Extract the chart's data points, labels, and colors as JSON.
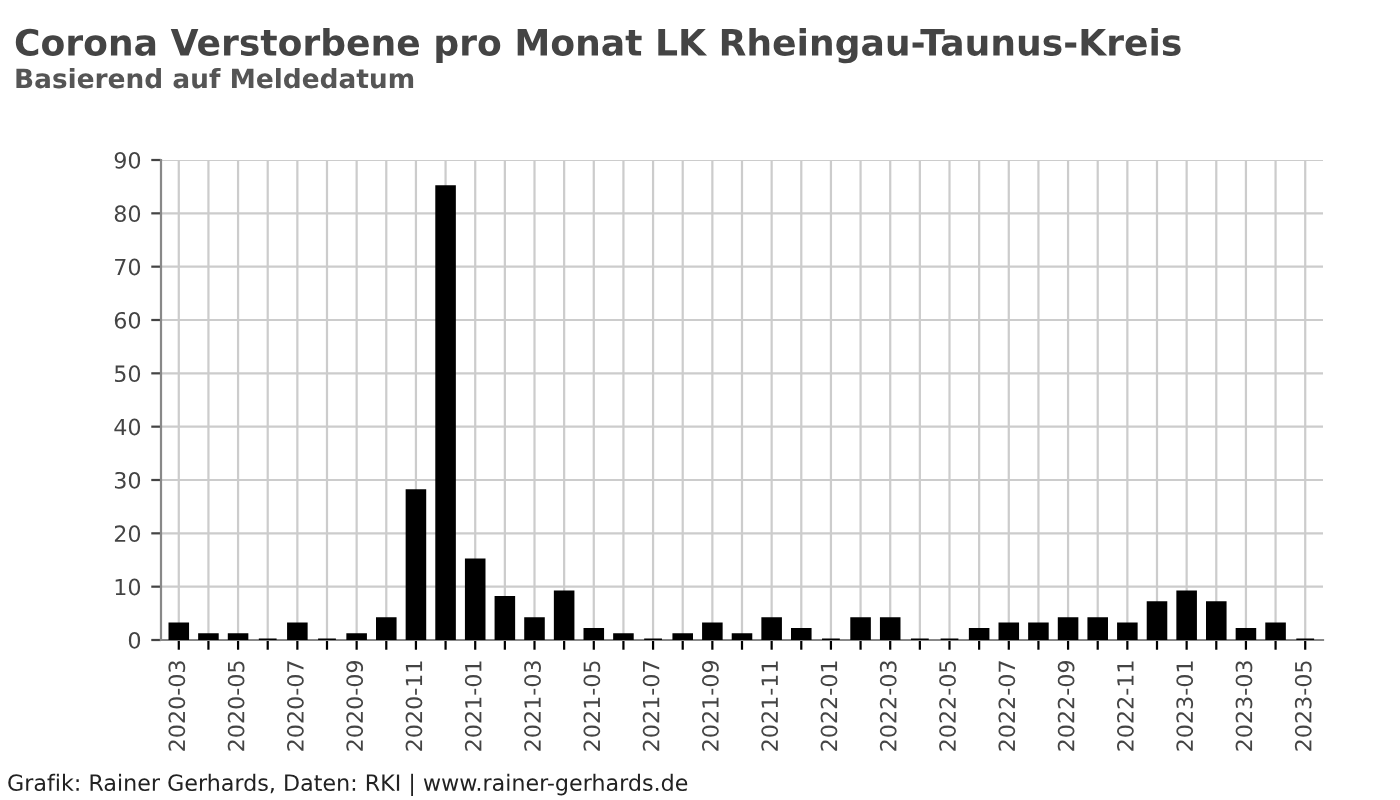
{
  "chart_data": {
    "type": "bar",
    "title": "Corona Verstorbene pro Monat LK Rheingau-Taunus-Kreis",
    "subtitle": "Basierend auf Meldedatum",
    "categories": [
      "2020-03",
      null,
      "2020-05",
      null,
      "2020-07",
      null,
      "2020-09",
      null,
      "2020-11",
      null,
      "2021-01",
      null,
      "2021-03",
      null,
      "2021-05",
      null,
      "2021-07",
      null,
      "2021-09",
      null,
      "2021-11",
      null,
      "2022-01",
      null,
      "2022-03",
      null,
      "2022-05",
      null,
      "2022-07",
      null,
      "2022-09",
      null,
      "2022-11",
      null,
      "2023-01",
      null,
      "2023-03",
      null,
      "2023-05"
    ],
    "values": [
      3,
      1,
      1,
      0,
      3,
      0,
      1,
      4,
      28,
      85,
      15,
      8,
      4,
      9,
      2,
      1,
      0,
      1,
      3,
      1,
      4,
      2,
      0,
      4,
      4,
      0,
      0,
      2,
      3,
      3,
      4,
      4,
      3,
      7,
      9,
      7,
      2,
      3,
      0
    ],
    "color": "#000000",
    "ylim": [
      0,
      90
    ],
    "yticks": [
      0,
      10,
      20,
      30,
      40,
      50,
      60,
      70,
      80,
      90
    ],
    "grid": true,
    "legend": false,
    "annotations": [
      "Grafik: Rainer Gerhards, Daten: RKI | www.rainer-gerhards.de"
    ]
  }
}
